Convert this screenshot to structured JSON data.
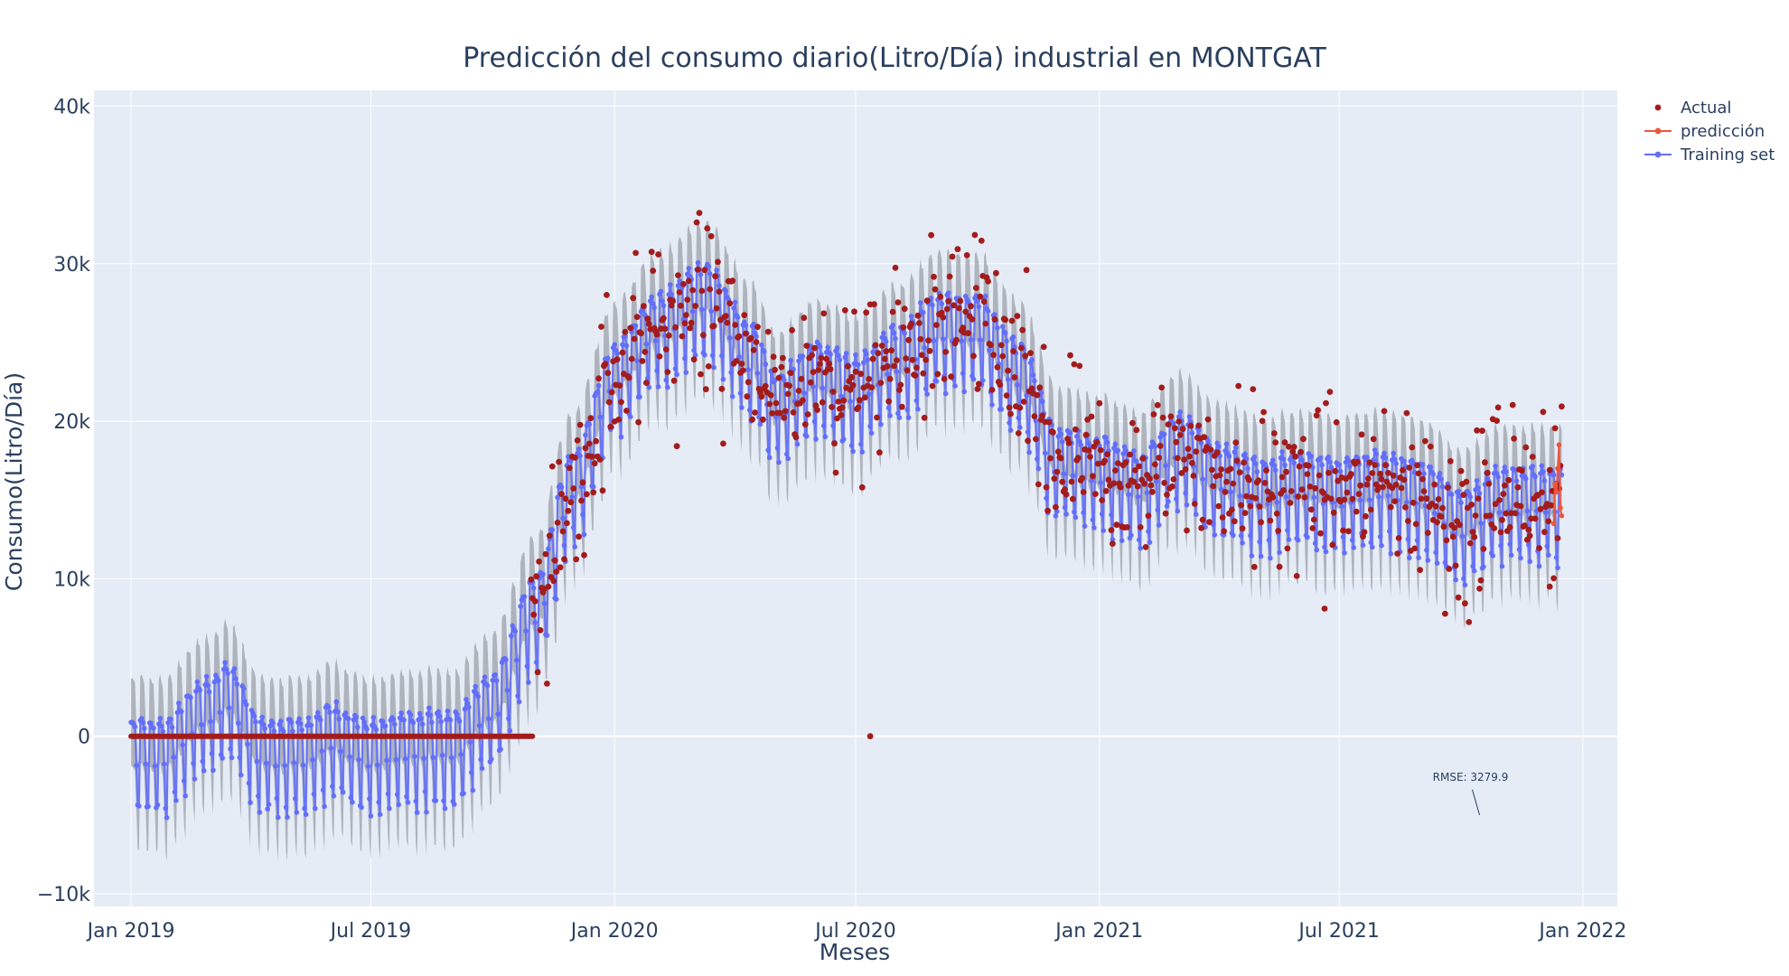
{
  "chart_data": {
    "type": "line",
    "title": "Predicción del consumo diario(Litro/Día) industrial en MONTGAT",
    "xlabel": "Meses",
    "ylabel": "Consumo(Litro/Día)",
    "x_range": [
      "2018-12-04",
      "2022-01-27"
    ],
    "ylim": [
      -10800,
      41000
    ],
    "x_ticks": [
      {
        "date": "2019-01-01",
        "label": "Jan 2019"
      },
      {
        "date": "2019-07-01",
        "label": "Jul 2019"
      },
      {
        "date": "2020-01-01",
        "label": "Jan 2020"
      },
      {
        "date": "2020-07-01",
        "label": "Jul 2020"
      },
      {
        "date": "2021-01-01",
        "label": "Jan 2021"
      },
      {
        "date": "2021-07-01",
        "label": "Jul 2021"
      },
      {
        "date": "2022-01-01",
        "label": "Jan 2022"
      }
    ],
    "y_ticks": [
      {
        "value": -10000,
        "label": "−10k"
      },
      {
        "value": 0,
        "label": "0"
      },
      {
        "value": 10000,
        "label": "10k"
      },
      {
        "value": 20000,
        "label": "20k"
      },
      {
        "value": 30000,
        "label": "30k"
      },
      {
        "value": 40000,
        "label": "40k"
      }
    ],
    "grid": true,
    "legend_position": "top-right",
    "series": [
      {
        "name": "Actual",
        "mode": "markers",
        "color": "#a31c1c"
      },
      {
        "name": "predicción",
        "mode": "lines+markers",
        "color": "#ef553b"
      },
      {
        "name": "Training set",
        "mode": "lines+markers",
        "color": "#636efa"
      }
    ],
    "data_range": {
      "start": "2019-01-01",
      "end": "2021-12-16"
    },
    "trend_points": [
      {
        "date": "2019-01-01",
        "value": -1000
      },
      {
        "date": "2019-01-25",
        "value": -1000
      },
      {
        "date": "2019-02-25",
        "value": 1500
      },
      {
        "date": "2019-03-15",
        "value": 2500
      },
      {
        "date": "2019-04-10",
        "value": -1000
      },
      {
        "date": "2019-05-10",
        "value": -1000
      },
      {
        "date": "2019-06-01",
        "value": 0
      },
      {
        "date": "2019-07-01",
        "value": -1000
      },
      {
        "date": "2019-08-01",
        "value": -500
      },
      {
        "date": "2019-09-01",
        "value": -500
      },
      {
        "date": "2019-10-01",
        "value": 2000
      },
      {
        "date": "2019-11-01",
        "value": 8000
      },
      {
        "date": "2019-12-01",
        "value": 16000
      },
      {
        "date": "2020-01-01",
        "value": 23000
      },
      {
        "date": "2020-02-01",
        "value": 26000
      },
      {
        "date": "2020-03-10",
        "value": 28000
      },
      {
        "date": "2020-04-15",
        "value": 24000
      },
      {
        "date": "2020-05-01",
        "value": 21000
      },
      {
        "date": "2020-06-01",
        "value": 23000
      },
      {
        "date": "2020-07-01",
        "value": 22000
      },
      {
        "date": "2020-08-01",
        "value": 24000
      },
      {
        "date": "2020-09-01",
        "value": 26000
      },
      {
        "date": "2020-10-01",
        "value": 26000
      },
      {
        "date": "2020-11-01",
        "value": 23000
      },
      {
        "date": "2020-12-01",
        "value": 17500
      },
      {
        "date": "2021-01-01",
        "value": 17000
      },
      {
        "date": "2021-02-01",
        "value": 16000
      },
      {
        "date": "2021-03-01",
        "value": 18500
      },
      {
        "date": "2021-04-01",
        "value": 16500
      },
      {
        "date": "2021-05-01",
        "value": 15500
      },
      {
        "date": "2021-06-01",
        "value": 16000
      },
      {
        "date": "2021-07-01",
        "value": 15500
      },
      {
        "date": "2021-08-01",
        "value": 16000
      },
      {
        "date": "2021-09-01",
        "value": 15500
      },
      {
        "date": "2021-10-01",
        "value": 13500
      },
      {
        "date": "2021-11-01",
        "value": 15000
      },
      {
        "date": "2021-12-16",
        "value": 15000
      }
    ],
    "weekly_amplitude": 2000,
    "uncertainty_half_width": 2800,
    "zero_segment": {
      "start": "2019-01-01",
      "end": "2019-10-31",
      "value": 0
    },
    "actual_start": "2019-10-30",
    "actual_scatter_range": [
      0.25,
      1.9
    ],
    "outliers": [
      {
        "date": "2020-07-12",
        "value": 0
      },
      {
        "date": "2021-06-20",
        "value": 8100
      },
      {
        "date": "2021-12-07",
        "value": 9500
      }
    ],
    "annotation": {
      "text": "RMSE: 3279.9",
      "date": "2021-10-15",
      "value": -5000
    }
  },
  "colors": {
    "plot_bg": "#e5ecf6",
    "grid": "#ffffff",
    "band": "#9ba0a8",
    "training": "#636efa",
    "actual": "#a31c1c",
    "prediction": "#ef553b",
    "zero_line": "#a31c1c"
  }
}
